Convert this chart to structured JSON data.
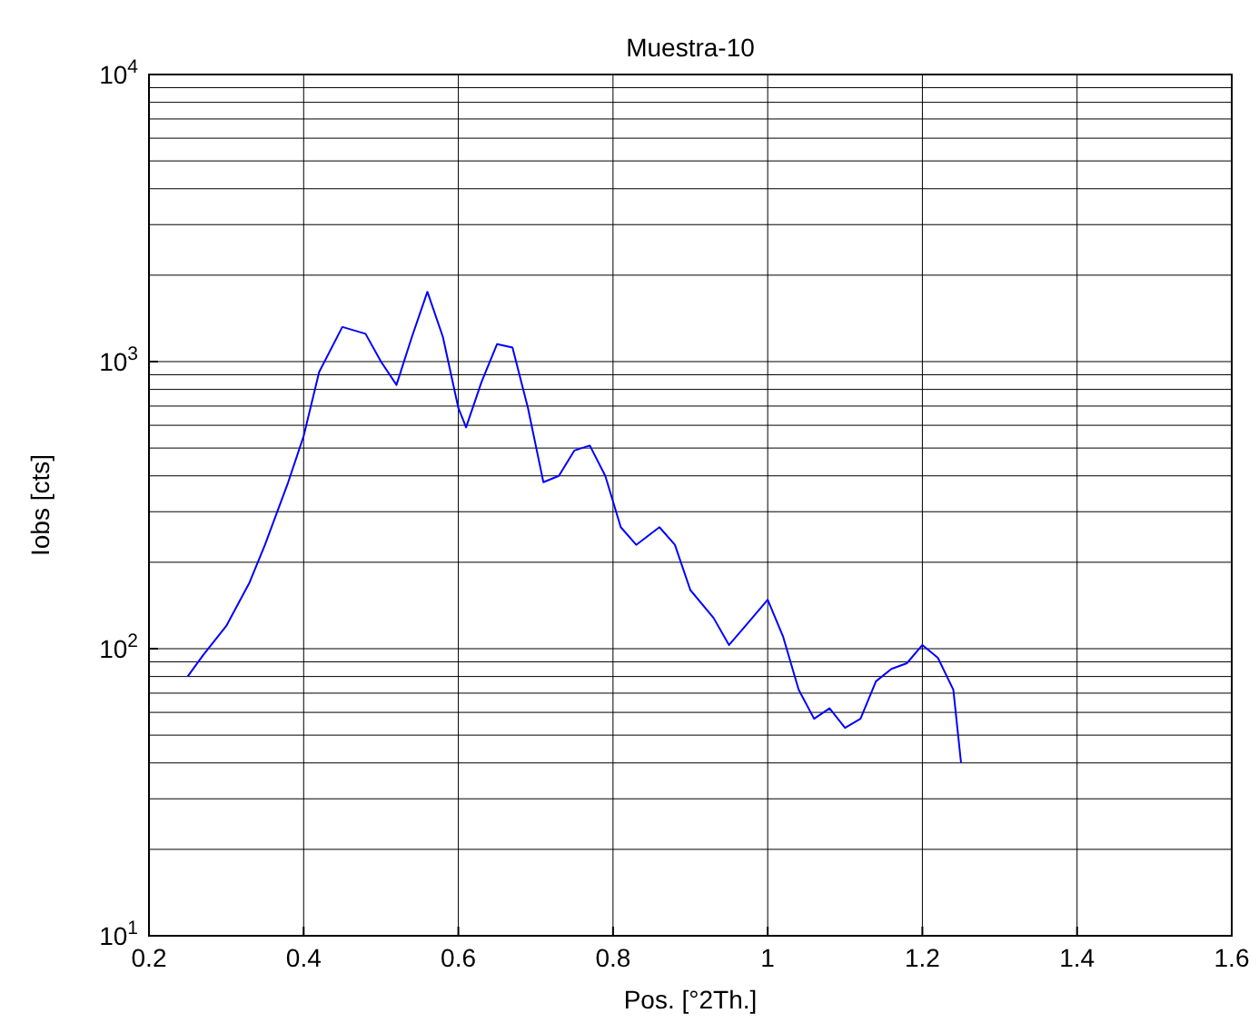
{
  "chart_data": {
    "type": "line",
    "title": "Muestra-10",
    "xlabel": "Pos. [°2Th.]",
    "ylabel": "Iobs [cts]",
    "log": "y",
    "grid": true,
    "xlim": [
      0.2,
      1.6
    ],
    "xticks": [
      0.2,
      0.4,
      0.6,
      0.8,
      1,
      1.2,
      1.4,
      1.6
    ],
    "ylim": [
      10,
      10000
    ],
    "yticks": [
      {
        "value": 10,
        "label": "10$^{1}$"
      },
      {
        "value": 100,
        "label": "10$^{2}$"
      },
      {
        "value": 1000,
        "label": "10$^{3}$"
      },
      {
        "value": 10000,
        "label": "10$^{4}$"
      }
    ],
    "series": [
      {
        "color": "#0000ff",
        "x": [
          0.25,
          0.27,
          0.3,
          0.33,
          0.35,
          0.38,
          0.4,
          0.42,
          0.45,
          0.48,
          0.5,
          0.52,
          0.54,
          0.56,
          0.58,
          0.6,
          0.61,
          0.63,
          0.65,
          0.67,
          0.69,
          0.71,
          0.73,
          0.75,
          0.77,
          0.79,
          0.81,
          0.83,
          0.86,
          0.88,
          0.9,
          0.93,
          0.95,
          0.97,
          1.0,
          1.02,
          1.04,
          1.06,
          1.08,
          1.1,
          1.12,
          1.14,
          1.16,
          1.18,
          1.2,
          1.22,
          1.24,
          1.25
        ],
        "values": [
          80,
          95,
          120,
          170,
          230,
          380,
          550,
          920,
          1320,
          1250,
          1000,
          830,
          1220,
          1750,
          1220,
          690,
          590,
          850,
          1150,
          1120,
          690,
          380,
          400,
          490,
          510,
          400,
          265,
          230,
          265,
          230,
          160,
          128,
          103,
          119,
          148,
          110,
          72,
          57,
          62,
          53,
          57,
          77,
          85,
          89,
          103,
          93,
          72,
          40
        ]
      }
    ]
  }
}
